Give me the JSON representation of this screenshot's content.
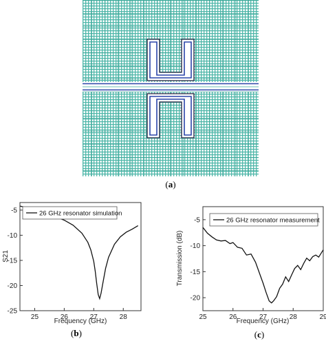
{
  "figure": {
    "panel_a_label": "a",
    "panel_b_label": "b",
    "panel_c_label": "c"
  },
  "chart_data": [
    {
      "id": "b",
      "type": "line",
      "title": "",
      "xlabel": "Frequency (GHz)",
      "ylabel": "S21",
      "xlim": [
        24.5,
        28.6
      ],
      "ylim": [
        -25,
        -3.5
      ],
      "xticks": [
        25,
        26,
        27,
        28
      ],
      "yticks": [
        -5,
        -10,
        -15,
        -20,
        -25
      ],
      "legend_position": "top-left",
      "grid": false,
      "series": [
        {
          "name": "26 GHz resonator simulation",
          "color": "#111111",
          "x": [
            24.5,
            25.0,
            25.5,
            26.0,
            26.3,
            26.6,
            26.8,
            26.9,
            27.0,
            27.05,
            27.1,
            27.15,
            27.2,
            27.25,
            27.3,
            27.4,
            27.5,
            27.7,
            27.9,
            28.1,
            28.3,
            28.5
          ],
          "y": [
            -4.2,
            -4.9,
            -5.8,
            -7.0,
            -8.0,
            -9.6,
            -11.4,
            -12.9,
            -15.2,
            -17.2,
            -19.6,
            -21.8,
            -22.6,
            -21.5,
            -19.8,
            -16.6,
            -14.4,
            -11.8,
            -10.3,
            -9.4,
            -8.8,
            -8.1
          ]
        }
      ]
    },
    {
      "id": "c",
      "type": "line",
      "title": "",
      "xlabel": "Frequency (GHz)",
      "ylabel": "Transmission (dB)",
      "xlim": [
        25,
        29
      ],
      "ylim": [
        -22.5,
        -2.5
      ],
      "xticks": [
        25,
        26,
        27,
        28,
        29
      ],
      "yticks": [
        -5,
        -10,
        -15,
        -20
      ],
      "legend_position": "top-right",
      "grid": false,
      "series": [
        {
          "name": "26 GHz resonator measurement",
          "color": "#111111",
          "x": [
            25.0,
            25.15,
            25.3,
            25.45,
            25.6,
            25.75,
            25.9,
            26.0,
            26.15,
            26.3,
            26.45,
            26.6,
            26.75,
            26.9,
            27.0,
            27.1,
            27.2,
            27.28,
            27.35,
            27.45,
            27.55,
            27.65,
            27.75,
            27.85,
            27.95,
            28.05,
            28.15,
            28.25,
            28.35,
            28.45,
            28.55,
            28.65,
            28.75,
            28.85,
            29.0
          ],
          "y": [
            -6.5,
            -7.6,
            -8.3,
            -8.9,
            -9.1,
            -9.0,
            -9.6,
            -9.4,
            -10.3,
            -10.5,
            -11.8,
            -11.6,
            -13.2,
            -15.6,
            -17.2,
            -19.0,
            -20.6,
            -21.0,
            -20.6,
            -19.8,
            -18.2,
            -17.4,
            -16.0,
            -16.9,
            -15.6,
            -14.4,
            -13.8,
            -14.6,
            -13.4,
            -12.4,
            -12.9,
            -12.1,
            -11.8,
            -12.2,
            -10.8
          ]
        }
      ]
    }
  ]
}
